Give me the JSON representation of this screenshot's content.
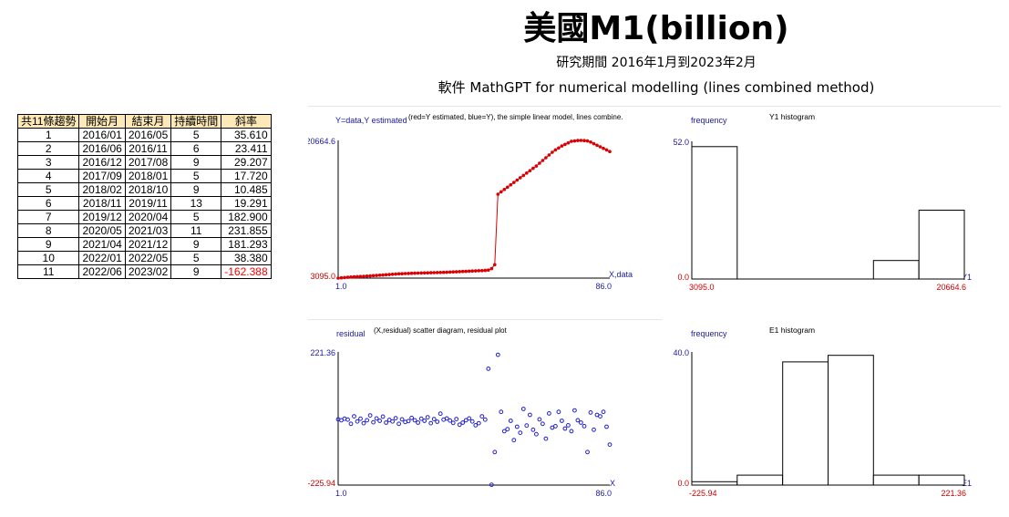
{
  "header": {
    "title": "美國M1(billion)",
    "period": "研究期間  2016年1月到2023年2月",
    "software": "軟件 MathGPT for numerical modelling (lines combined method)"
  },
  "table": {
    "headers": [
      "共11條趨勢",
      "開始月",
      "結束月",
      "持續時間",
      "斜率"
    ],
    "rows": [
      [
        "1",
        "2016/01",
        "2016/05",
        "5",
        "35.610"
      ],
      [
        "2",
        "2016/06",
        "2016/11",
        "6",
        "23.411"
      ],
      [
        "3",
        "2016/12",
        "2017/08",
        "9",
        "29.207"
      ],
      [
        "4",
        "2017/09",
        "2018/01",
        "5",
        "17.720"
      ],
      [
        "5",
        "2018/02",
        "2018/10",
        "9",
        "10.485"
      ],
      [
        "6",
        "2018/11",
        "2019/11",
        "13",
        "19.291"
      ],
      [
        "7",
        "2019/12",
        "2020/04",
        "5",
        "182.900"
      ],
      [
        "8",
        "2020/05",
        "2021/03",
        "11",
        "231.855"
      ],
      [
        "9",
        "2021/04",
        "2021/12",
        "9",
        "181.293"
      ],
      [
        "10",
        "2022/01",
        "2022/05",
        "5",
        "38.380"
      ],
      [
        "11",
        "2022/06",
        "2023/02",
        "9",
        "-162.388"
      ]
    ]
  },
  "colors": {
    "estimated": "#dd0000",
    "data": "#2020cc",
    "axis_label": "#1a1aa6",
    "tick_red": "#cc0000",
    "negative": "#ff0000"
  },
  "chart_data": [
    {
      "type": "line",
      "id": "fit",
      "title": "(red=Y estimated, blue=Y), the simple linear model, lines combine.",
      "ylabel": "Y=data,Y estimated",
      "xlabel": "X,data",
      "xlim": [
        1.0,
        86.0
      ],
      "ylim": [
        3095.0,
        20664.6
      ],
      "x_min_label": "1.0",
      "x_max_label": "86.0",
      "y_min_label": "3095.0",
      "y_max_label": "20664.6",
      "series": [
        {
          "name": "Y",
          "x": [
            1,
            2,
            3,
            4,
            5,
            6,
            7,
            8,
            9,
            10,
            11,
            12,
            13,
            14,
            15,
            16,
            17,
            18,
            19,
            20,
            21,
            22,
            23,
            24,
            25,
            26,
            27,
            28,
            29,
            30,
            31,
            32,
            33,
            34,
            35,
            36,
            37,
            38,
            39,
            40,
            41,
            42,
            43,
            44,
            45,
            46,
            47,
            48,
            49,
            50,
            51,
            52,
            53,
            54,
            55,
            56,
            57,
            58,
            59,
            60,
            61,
            62,
            63,
            64,
            65,
            66,
            67,
            68,
            69,
            70,
            71,
            72,
            73,
            74,
            75,
            76,
            77,
            78,
            79,
            80,
            81,
            82,
            83,
            84,
            85,
            86
          ],
          "values": [
            3100,
            3135,
            3170,
            3205,
            3240,
            3262,
            3285,
            3308,
            3331,
            3354,
            3377,
            3405,
            3434,
            3463,
            3492,
            3521,
            3550,
            3579,
            3608,
            3637,
            3655,
            3673,
            3691,
            3709,
            3727,
            3738,
            3749,
            3760,
            3771,
            3782,
            3793,
            3804,
            3815,
            3826,
            3845,
            3864,
            3883,
            3902,
            3921,
            3940,
            3959,
            3978,
            3997,
            4016,
            4035,
            4054,
            4073,
            4120,
            4300,
            4800,
            13800,
            14100,
            14400,
            14700,
            15000,
            15300,
            15600,
            15900,
            16200,
            16500,
            16800,
            17100,
            17400,
            17750,
            18100,
            18450,
            18800,
            19150,
            19450,
            19700,
            19950,
            20150,
            20350,
            20550,
            20600,
            20650,
            20664,
            20640,
            20600,
            20450,
            20250,
            20050,
            19850,
            19650,
            19450,
            19250
          ]
        },
        {
          "name": "Y estimated",
          "x": [
            1,
            2,
            3,
            4,
            5,
            6,
            7,
            8,
            9,
            10,
            11,
            12,
            13,
            14,
            15,
            16,
            17,
            18,
            19,
            20,
            21,
            22,
            23,
            24,
            25,
            26,
            27,
            28,
            29,
            30,
            31,
            32,
            33,
            34,
            35,
            36,
            37,
            38,
            39,
            40,
            41,
            42,
            43,
            44,
            45,
            46,
            47,
            48,
            49,
            50,
            51,
            52,
            53,
            54,
            55,
            56,
            57,
            58,
            59,
            60,
            61,
            62,
            63,
            64,
            65,
            66,
            67,
            68,
            69,
            70,
            71,
            72,
            73,
            74,
            75,
            76,
            77,
            78,
            79,
            80,
            81,
            82,
            83,
            84,
            85,
            86
          ],
          "values": [
            3100,
            3135,
            3170,
            3205,
            3240,
            3262,
            3285,
            3308,
            3331,
            3354,
            3377,
            3405,
            3434,
            3463,
            3492,
            3521,
            3550,
            3579,
            3608,
            3637,
            3655,
            3673,
            3691,
            3709,
            3727,
            3738,
            3749,
            3760,
            3771,
            3782,
            3793,
            3804,
            3815,
            3826,
            3845,
            3864,
            3883,
            3902,
            3921,
            3940,
            3959,
            3978,
            3997,
            4016,
            4035,
            4054,
            4073,
            4120,
            4300,
            4800,
            13800,
            14100,
            14400,
            14700,
            15000,
            15300,
            15600,
            15900,
            16200,
            16500,
            16800,
            17100,
            17400,
            17750,
            18100,
            18450,
            18800,
            19150,
            19450,
            19700,
            19950,
            20150,
            20350,
            20550,
            20600,
            20650,
            20664,
            20640,
            20600,
            20450,
            20250,
            20050,
            19850,
            19650,
            19450,
            19250
          ]
        }
      ]
    },
    {
      "type": "bar",
      "id": "y1hist",
      "title": "Y1 histogram",
      "ylabel": "frequency",
      "xlabel": "Y1",
      "xlim": [
        3095.0,
        20664.6
      ],
      "ylim": [
        0,
        52
      ],
      "x_min_label": "3095.0",
      "x_max_label": "20664.6",
      "y_min_label": "0.0",
      "y_max_label": "52.0",
      "bins": 6,
      "values": [
        50,
        0,
        0,
        0,
        7,
        26
      ]
    },
    {
      "type": "scatter",
      "id": "resid",
      "title": "(X,residual) scatter diagram, residual plot",
      "ylabel": "residual",
      "xlabel": "X",
      "xlim": [
        1.0,
        86.0
      ],
      "ylim": [
        -225.94,
        221.36
      ],
      "x_min_label": "1.0",
      "x_max_label": "86.0",
      "y_min_label": "-225.94",
      "y_max_label": "221.36",
      "x": [
        1,
        2,
        3,
        4,
        5,
        6,
        7,
        8,
        9,
        10,
        11,
        12,
        13,
        14,
        15,
        16,
        17,
        18,
        19,
        20,
        21,
        22,
        23,
        24,
        25,
        26,
        27,
        28,
        29,
        30,
        31,
        32,
        33,
        34,
        35,
        36,
        37,
        38,
        39,
        40,
        41,
        42,
        43,
        44,
        45,
        46,
        47,
        48,
        49,
        50,
        51,
        52,
        53,
        54,
        55,
        56,
        57,
        58,
        59,
        60,
        61,
        62,
        63,
        64,
        65,
        66,
        67,
        68,
        69,
        70,
        71,
        72,
        73,
        74,
        75,
        76,
        77,
        78,
        79,
        80,
        81,
        82,
        83,
        84,
        85,
        86
      ],
      "values": [
        -5,
        -8,
        -3,
        -6,
        -20,
        5,
        -12,
        -3,
        -18,
        -8,
        8,
        -15,
        -2,
        -10,
        4,
        -16,
        -7,
        -12,
        -1,
        -20,
        -5,
        -14,
        -11,
        0,
        -8,
        -16,
        -3,
        -10,
        2,
        -18,
        -4,
        -13,
        14,
        -6,
        -2,
        -9,
        -17,
        -4,
        -23,
        -16,
        -8,
        -2,
        -12,
        -25,
        -18,
        5,
        -6,
        165,
        -225,
        -115,
        212,
        20,
        -45,
        -38,
        -10,
        -75,
        -30,
        -50,
        30,
        -26,
        10,
        -40,
        -55,
        -5,
        -20,
        -70,
        15,
        -33,
        -28,
        20,
        -10,
        -36,
        -25,
        -45,
        25,
        -8,
        -16,
        -28,
        -115,
        18,
        -40,
        10,
        5,
        20,
        -30,
        -90
      ]
    },
    {
      "type": "bar",
      "id": "e1hist",
      "title": "E1 histogram",
      "ylabel": "frequency",
      "xlabel": "E1",
      "xlim": [
        -225.94,
        221.36
      ],
      "ylim": [
        0,
        40
      ],
      "x_min_label": "-225.94",
      "x_max_label": "221.36",
      "y_min_label": "0.0",
      "y_max_label": "40.0",
      "bins": 6,
      "values": [
        1,
        3,
        37,
        39,
        3,
        3
      ]
    }
  ]
}
